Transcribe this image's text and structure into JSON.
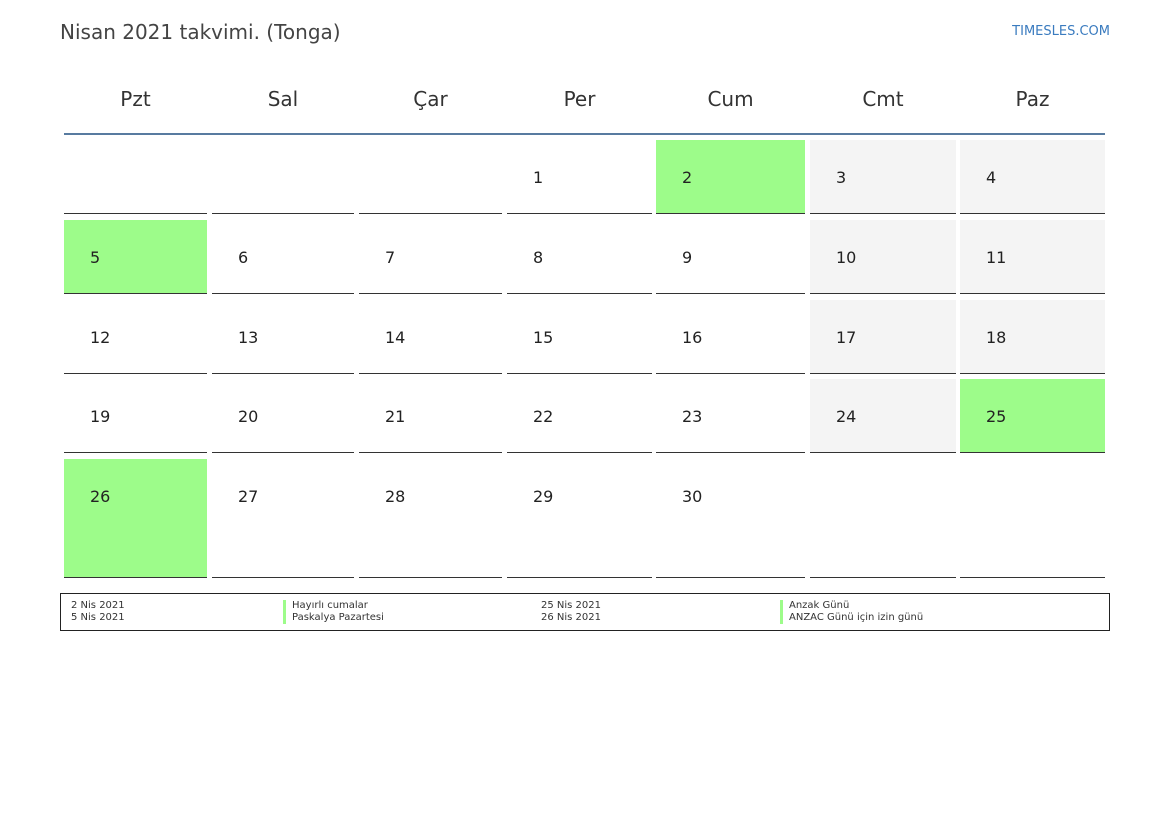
{
  "header": {
    "title": "Nisan 2021 takvimi. (Tonga)",
    "site": "TIMESLES.COM"
  },
  "weekdays": [
    "Pzt",
    "Sal",
    "Çar",
    "Per",
    "Cum",
    "Cmt",
    "Paz"
  ],
  "weeks": [
    [
      null,
      null,
      null,
      "1",
      "2",
      "3",
      "4"
    ],
    [
      "5",
      "6",
      "7",
      "8",
      "9",
      "10",
      "11"
    ],
    [
      "12",
      "13",
      "14",
      "15",
      "16",
      "17",
      "18"
    ],
    [
      "19",
      "20",
      "21",
      "22",
      "23",
      "24",
      "25"
    ],
    [
      "26",
      "27",
      "28",
      "29",
      "30",
      null,
      null
    ]
  ],
  "holiday_days": [
    "2",
    "5",
    "25",
    "26"
  ],
  "colors": {
    "holiday": "#9dfc8a",
    "weekend": "#f4f4f4",
    "header_rule": "#587ba0",
    "link": "#3a7bbf"
  },
  "legend": {
    "left": [
      {
        "date": "2 Nis 2021",
        "name": "Hayırlı cumalar"
      },
      {
        "date": "5 Nis 2021",
        "name": "Paskalya Pazartesi"
      }
    ],
    "right": [
      {
        "date": "25 Nis 2021",
        "name": "Anzak Günü"
      },
      {
        "date": "26 Nis 2021",
        "name": "ANZAC Günü için izin günü"
      }
    ]
  }
}
